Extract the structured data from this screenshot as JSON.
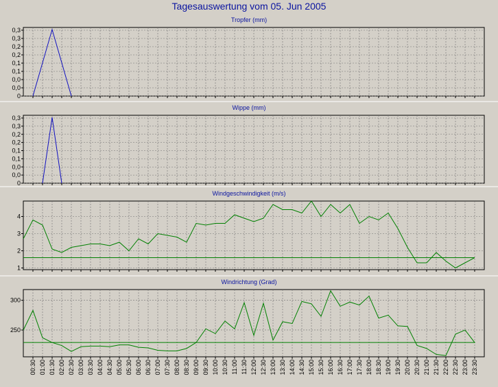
{
  "title": "Tagesauswertung vom 05. Jun 2005",
  "colors": {
    "title": "#0a14a0",
    "blue_series": "#1010c0",
    "green_series": "#008000",
    "plot_bg": "#d4d0c8",
    "grid": "#707070"
  },
  "x_ticks": [
    "00:30",
    "01:00",
    "01:30",
    "02:00",
    "02:30",
    "03:00",
    "03:30",
    "04:00",
    "04:30",
    "05:00",
    "05:30",
    "06:00",
    "06:30",
    "07:00",
    "07:30",
    "08:00",
    "08:30",
    "09:00",
    "09:30",
    "10:00",
    "10:30",
    "11:00",
    "11:30",
    "12:00",
    "12:30",
    "13:00",
    "13:30",
    "14:00",
    "14:30",
    "15:00",
    "15:30",
    "16:00",
    "16:30",
    "17:00",
    "17:30",
    "18:00",
    "18:30",
    "19:00",
    "19:30",
    "20:00",
    "20:30",
    "21:00",
    "21:30",
    "22:00",
    "22:30",
    "23:00",
    "23:30"
  ],
  "chart_data": [
    {
      "type": "line",
      "title": "Tropfer (mm)",
      "color": "#1010c0",
      "y_tick_labels": [
        "0",
        "0,0",
        "0,0",
        "0,1",
        "0,1",
        "0,2",
        "0,2",
        "0,3",
        "0,3"
      ],
      "ylim": [
        0,
        0.33
      ],
      "x": [
        "00:30",
        "01:30",
        "02:30"
      ],
      "values": [
        0,
        0.32,
        0
      ],
      "x_offset": [
        0,
        0,
        0
      ]
    },
    {
      "type": "line",
      "title": "Wippe (mm)",
      "color": "#1010c0",
      "y_tick_labels": [
        "0",
        "0,0",
        "0,0",
        "0,1",
        "0,1",
        "0,2",
        "0,2",
        "0,3",
        "0,3"
      ],
      "ylim": [
        0,
        0.33
      ],
      "x": [
        "01:00",
        "01:30",
        "02:00"
      ],
      "values": [
        0,
        0.32,
        0
      ],
      "x_offset": [
        0,
        0,
        0
      ]
    },
    {
      "type": "line",
      "title": "Windgeschwindigkeit (m/s)",
      "color": "#008000",
      "y_ticks": [
        1,
        2,
        3,
        4
      ],
      "y_tick_labels": [
        "1",
        "2",
        "3",
        "4"
      ],
      "ylim": [
        0.9,
        4.9
      ],
      "x": [
        "00:00",
        "00:30",
        "01:00",
        "01:30",
        "02:00",
        "02:30",
        "03:00",
        "03:30",
        "04:00",
        "04:30",
        "05:00",
        "05:30",
        "06:00",
        "06:30",
        "07:00",
        "07:30",
        "08:00",
        "08:30",
        "09:00",
        "09:30",
        "10:00",
        "10:30",
        "11:00",
        "11:30",
        "12:00",
        "12:30",
        "13:00",
        "13:30",
        "14:00",
        "14:30",
        "15:00",
        "15:30",
        "16:00",
        "16:30",
        "17:00",
        "17:30",
        "18:00",
        "18:30",
        "19:00",
        "19:30",
        "20:00",
        "20:30",
        "21:00",
        "21:30",
        "22:00",
        "22:30",
        "23:00",
        "23:30",
        "00:00"
      ],
      "values": [
        2.7,
        3.8,
        3.5,
        2.1,
        1.9,
        2.2,
        2.3,
        2.4,
        2.4,
        2.3,
        2.5,
        2.0,
        2.7,
        2.4,
        3.0,
        2.9,
        2.8,
        2.5,
        3.6,
        3.5,
        3.6,
        3.6,
        4.1,
        3.9,
        3.7,
        3.9,
        4.7,
        4.4,
        4.4,
        4.2,
        4.9,
        4.0,
        4.7,
        4.2,
        4.7,
        3.6,
        4.0,
        3.8,
        4.2,
        3.3,
        2.2,
        1.3,
        1.3,
        1.9,
        1.4,
        1.0,
        1.3,
        1.6,
        1.6
      ],
      "x_offset": [
        0
      ]
    },
    {
      "type": "line",
      "title": "Windrichtung (Grad)",
      "color": "#008000",
      "y_ticks": [
        250,
        300
      ],
      "y_tick_labels": [
        "250",
        "300"
      ],
      "ylim": [
        205,
        318
      ],
      "x": [
        "00:00",
        "00:30",
        "01:00",
        "01:30",
        "02:00",
        "02:30",
        "03:00",
        "03:30",
        "04:00",
        "04:30",
        "05:00",
        "05:30",
        "06:00",
        "06:30",
        "07:00",
        "07:30",
        "08:00",
        "08:30",
        "09:00",
        "09:30",
        "10:00",
        "10:30",
        "11:00",
        "11:30",
        "12:00",
        "12:30",
        "13:00",
        "13:30",
        "14:00",
        "14:30",
        "15:00",
        "15:30",
        "16:00",
        "16:30",
        "17:00",
        "17:30",
        "18:00",
        "18:30",
        "19:00",
        "19:30",
        "20:00",
        "20:30",
        "21:00",
        "21:30",
        "22:00",
        "22:30",
        "23:00",
        "23:30",
        "00:00"
      ],
      "values": [
        250,
        283,
        237,
        229,
        224,
        214,
        222,
        223,
        223,
        222,
        225,
        225,
        221,
        220,
        216,
        215,
        215,
        219,
        229,
        252,
        244,
        265,
        252,
        296,
        241,
        295,
        233,
        264,
        261,
        298,
        294,
        273,
        316,
        290,
        297,
        292,
        307,
        270,
        275,
        257,
        256,
        224,
        219,
        209,
        207,
        243,
        250,
        229,
        229
      ],
      "x_offset": [
        0
      ]
    }
  ]
}
